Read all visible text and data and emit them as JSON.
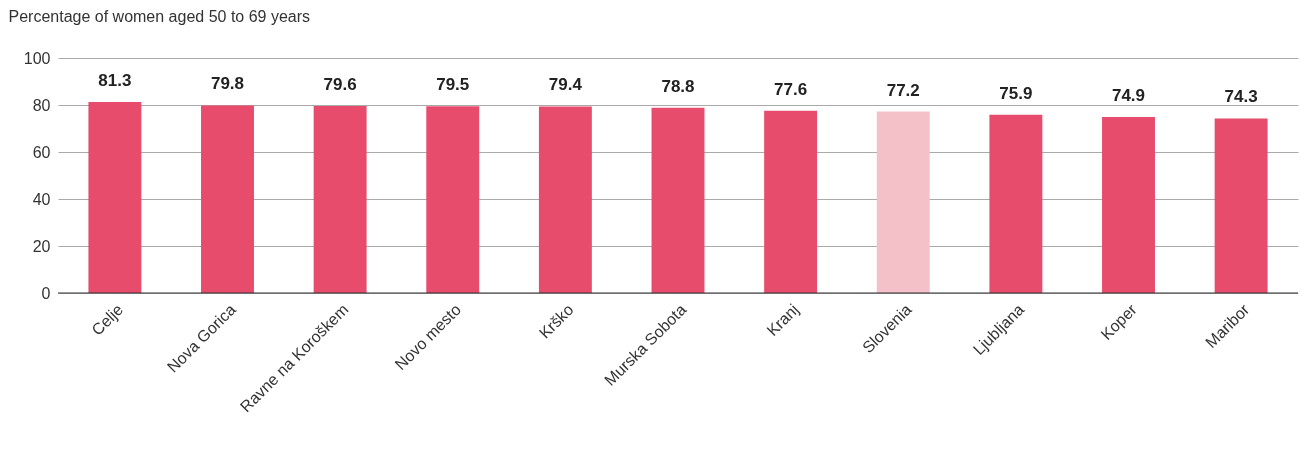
{
  "chart_data": {
    "type": "bar",
    "ylabel": "Percentage of women aged 50 to 69 years",
    "categories": [
      "Celje",
      "Nova Gorica",
      "Ravne na Koroškem",
      "Novo mesto",
      "Krško",
      "Murska Sobota",
      "Kranj",
      "Slovenia",
      "Ljubljana",
      "Koper",
      "Maribor"
    ],
    "values": [
      81.3,
      79.8,
      79.6,
      79.5,
      79.4,
      78.8,
      77.6,
      77.2,
      75.9,
      74.9,
      74.3
    ],
    "colors": [
      "#e84c6c",
      "#e84c6c",
      "#e84c6c",
      "#e84c6c",
      "#e84c6c",
      "#e84c6c",
      "#e84c6c",
      "#f5c1c8",
      "#e84c6c",
      "#e84c6c",
      "#e84c6c"
    ],
    "ylim": [
      0,
      100
    ],
    "yticks": [
      0,
      20,
      40,
      60,
      80,
      100
    ],
    "grid": "y",
    "data_labels": true
  }
}
